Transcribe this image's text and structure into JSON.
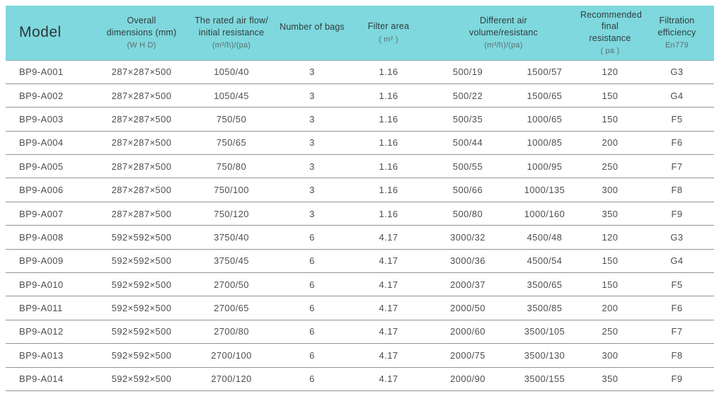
{
  "colors": {
    "header_bg": "#7ed8dd",
    "header_text": "#303b3c",
    "header_sub_text": "#5d6f72",
    "body_text": "#4e4e4e",
    "row_line": "#949494"
  },
  "table": {
    "header": {
      "model": "Model",
      "overall": {
        "label": "Overall\ndimensions (mm)",
        "sub": "(W H D)"
      },
      "rated": {
        "label": "The rated air flow/\ninitial resistance",
        "sub": "(m³/h)/(pa)"
      },
      "bags": {
        "label": "Number of bags",
        "sub": ""
      },
      "filter_area": {
        "label": "Filter area",
        "sub": "( m² )"
      },
      "different_air": {
        "label": "Different air\nvolume/resistanc",
        "sub": "(m³/h)/(pa)"
      },
      "recommended": {
        "label": "Recommended\nfinal resistance",
        "sub": "( pa )"
      },
      "filtration": {
        "label": "Filtration\nefficiency",
        "sub": "En779"
      }
    },
    "rows": [
      [
        "BP9-A001",
        "287×287×500",
        "1050/40",
        "3",
        "1.16",
        "500/19",
        "1500/57",
        "120",
        "G3"
      ],
      [
        "BP9-A002",
        "287×287×500",
        "1050/45",
        "3",
        "1.16",
        "500/22",
        "1500/65",
        "150",
        "G4"
      ],
      [
        "BP9-A003",
        "287×287×500",
        "750/50",
        "3",
        "1.16",
        "500/35",
        "1000/65",
        "150",
        "F5"
      ],
      [
        "BP9-A004",
        "287×287×500",
        "750/65",
        "3",
        "1.16",
        "500/44",
        "1000/85",
        "200",
        "F6"
      ],
      [
        "BP9-A005",
        "287×287×500",
        "750/80",
        "3",
        "1.16",
        "500/55",
        "1000/95",
        "250",
        "F7"
      ],
      [
        "BP9-A006",
        "287×287×500",
        "750/100",
        "3",
        "1.16",
        "500/66",
        "1000/135",
        "300",
        "F8"
      ],
      [
        "BP9-A007",
        "287×287×500",
        "750/120",
        "3",
        "1.16",
        "500/80",
        "1000/160",
        "350",
        "F9"
      ],
      [
        "BP9-A008",
        "592×592×500",
        "3750/40",
        "6",
        "4.17",
        "3000/32",
        "4500/48",
        "120",
        "G3"
      ],
      [
        "BP9-A009",
        "592×592×500",
        "3750/45",
        "6",
        "4.17",
        "3000/36",
        "4500/54",
        "150",
        "G4"
      ],
      [
        "BP9-A010",
        "592×592×500",
        "2700/50",
        "6",
        "4.17",
        "2000/37",
        "3500/65",
        "150",
        "F5"
      ],
      [
        "BP9-A011",
        "592×592×500",
        "2700/65",
        "6",
        "4.17",
        "2000/50",
        "3500/85",
        "200",
        "F6"
      ],
      [
        "BP9-A012",
        "592×592×500",
        "2700/80",
        "6",
        "4.17",
        "2000/60",
        "3500/105",
        "250",
        "F7"
      ],
      [
        "BP9-A013",
        "592×592×500",
        "2700/100",
        "6",
        "4.17",
        "2000/75",
        "3500/130",
        "300",
        "F8"
      ],
      [
        "BP9-A014",
        "592×592×500",
        "2700/120",
        "6",
        "4.17",
        "2000/90",
        "3500/155",
        "350",
        "F9"
      ]
    ]
  }
}
